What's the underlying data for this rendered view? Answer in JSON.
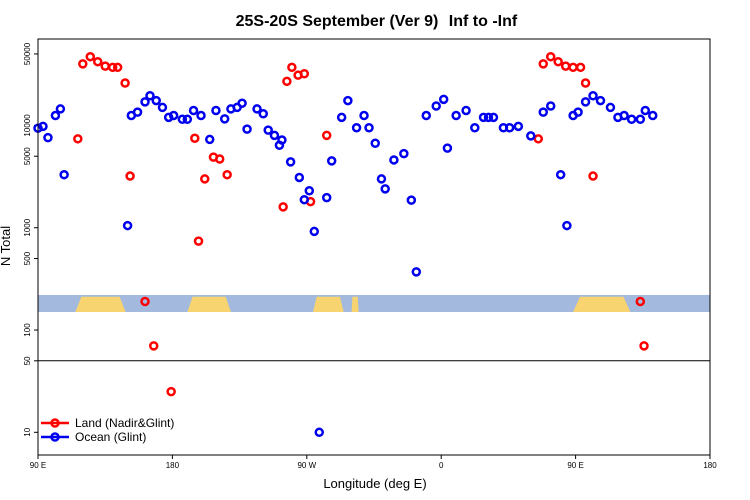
{
  "chart_data": {
    "type": "scatter",
    "title": "25S-20S September (Ver 9)",
    "subtitle": "Inf to -Inf",
    "xlabel": "Longitude (deg E)",
    "ylabel": "N Total",
    "y_scale": "log",
    "xlim": [
      -90,
      180
    ],
    "ylim": [
      6,
      70000
    ],
    "grid": false,
    "legend_position": "bottom-left",
    "x_ticks": [
      -90,
      -36,
      18,
      72,
      126,
      180
    ],
    "x_tick_labels": [
      "90 E",
      "180",
      "90 W",
      "0",
      "90 E",
      "180"
    ],
    "y_ticks": [
      10,
      50,
      100,
      500,
      1000,
      5000,
      10000,
      50000
    ],
    "y_tick_labels": [
      "10",
      "50",
      "100",
      "500",
      "1000",
      "5000",
      "10000",
      "50000"
    ],
    "reference_line_y": 50,
    "map_band": {
      "y_range": [
        150,
        220
      ],
      "ocean_color": "#a3bade",
      "land_color": "#f7d46f",
      "land_segments": [
        [
          -75,
          -54.8
        ],
        [
          -30,
          -12.5
        ],
        [
          20.5,
          32.8
        ],
        [
          36,
          38.8
        ],
        [
          125,
          148
        ]
      ]
    },
    "series": [
      {
        "name": "Land (Nadir&Glint)",
        "color": "#ff0000",
        "x": [
          -74,
          -72,
          -69,
          -66,
          -63,
          -60,
          -58,
          -55,
          -53,
          -47,
          -43.5,
          -36.5,
          -27,
          -25.5,
          -23,
          -19.5,
          -17,
          -14,
          8.5,
          10,
          12,
          14.5,
          17,
          19.5,
          26,
          111,
          113,
          116,
          119,
          122,
          125,
          128,
          130,
          133,
          152,
          153.5
        ],
        "y": [
          7400,
          40000,
          47000,
          42000,
          38000,
          37000,
          37000,
          26000,
          3200,
          190,
          70,
          25,
          7500,
          740,
          3000,
          4900,
          4700,
          3300,
          1600,
          27000,
          37000,
          31000,
          32000,
          1800,
          8000,
          7400,
          40000,
          47000,
          42000,
          38000,
          37000,
          37000,
          26000,
          3200,
          190,
          70
        ]
      },
      {
        "name": "Ocean (Glint)",
        "color": "#0000ee",
        "x": [
          -90,
          -88,
          -86,
          -83,
          -81,
          -79.5,
          -54,
          -52.5,
          -50,
          -47,
          -45,
          -42.5,
          -40,
          -37.5,
          -35.5,
          -32,
          -30,
          -27.5,
          -24.5,
          -21,
          -18.5,
          -15,
          -12.5,
          -10,
          -8,
          -6,
          -2,
          0.5,
          2.5,
          5,
          7,
          8,
          11.5,
          15,
          17,
          19,
          21,
          23,
          26,
          28,
          32,
          34.5,
          38,
          41,
          43,
          45.5,
          48,
          49.5,
          53,
          57,
          60,
          62,
          66,
          70,
          73,
          74.5,
          78,
          82,
          85.5,
          89,
          91,
          93,
          97,
          99.5,
          103,
          108,
          113,
          116,
          120,
          122.5,
          125,
          127,
          130,
          133,
          136,
          140,
          143,
          145.5,
          148.5,
          152,
          154,
          157
        ],
        "y": [
          9400,
          9800,
          7600,
          12500,
          14500,
          3300,
          1050,
          12500,
          13500,
          17000,
          19500,
          17500,
          15000,
          12000,
          12500,
          11500,
          11500,
          14000,
          12500,
          7300,
          14000,
          11600,
          14500,
          15000,
          16500,
          9200,
          14500,
          13000,
          9000,
          8000,
          6400,
          7200,
          4400,
          3100,
          1880,
          2300,
          920,
          10,
          1970,
          4500,
          12000,
          17500,
          9500,
          12500,
          9500,
          6700,
          3000,
          2400,
          4600,
          5300,
          1860,
          370,
          12500,
          15500,
          18000,
          6000,
          12500,
          14000,
          9500,
          12000,
          12000,
          12000,
          9500,
          9500,
          9800,
          7900,
          13500,
          15500,
          3300,
          1050,
          12500,
          13500,
          17000,
          19500,
          17500,
          15000,
          12000,
          12500,
          11500,
          11500,
          14000,
          12500
        ]
      }
    ]
  }
}
